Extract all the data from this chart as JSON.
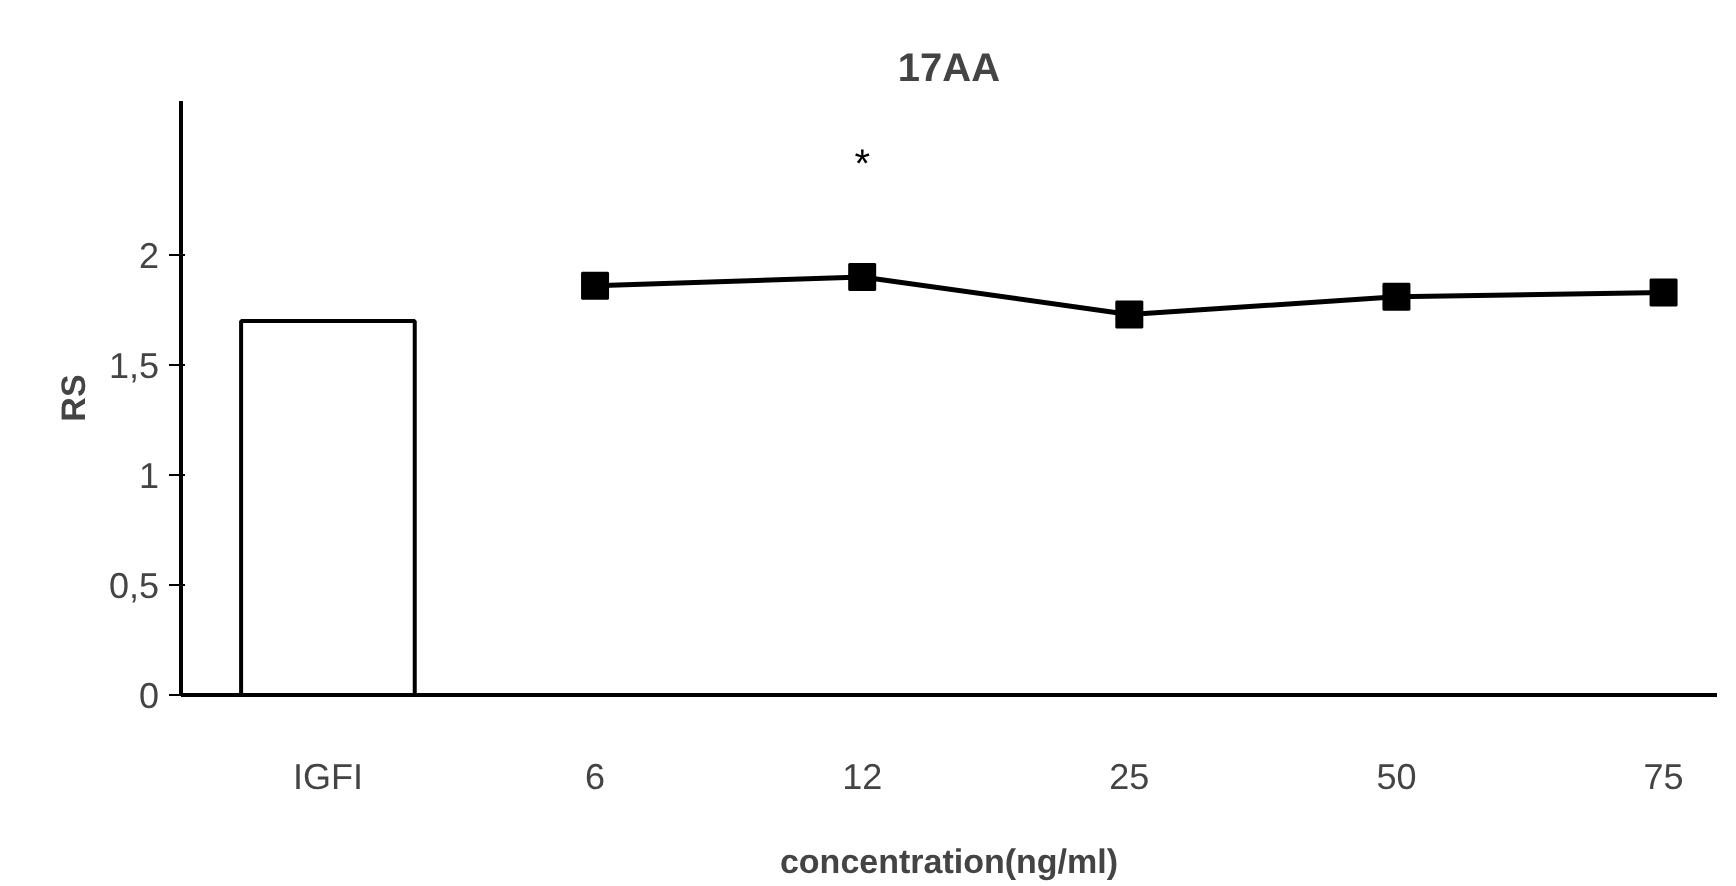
{
  "chart_data": {
    "type": "line",
    "title": "17AA",
    "xlabel": "concentration(ng/ml)",
    "ylabel": "RS",
    "categories": [
      "IGFI",
      "6",
      "12",
      "25",
      "50",
      "75"
    ],
    "series": [
      {
        "type": "bar",
        "color": "#ffffff",
        "values": [
          1.7,
          null,
          null,
          null,
          null,
          null
        ]
      },
      {
        "color": "#000000",
        "values": [
          null,
          1.86,
          1.9,
          1.73,
          1.81,
          1.83
        ]
      }
    ],
    "marker": "square",
    "line_style": "solid",
    "grid": false,
    "ylim": [
      0,
      2.7
    ],
    "yticks": [
      0,
      {
        "value": 0.5,
        "label": "0,5"
      },
      1,
      {
        "value": 1.5,
        "label": "1,5"
      },
      2
    ],
    "annotations": [
      "*"
    ]
  }
}
